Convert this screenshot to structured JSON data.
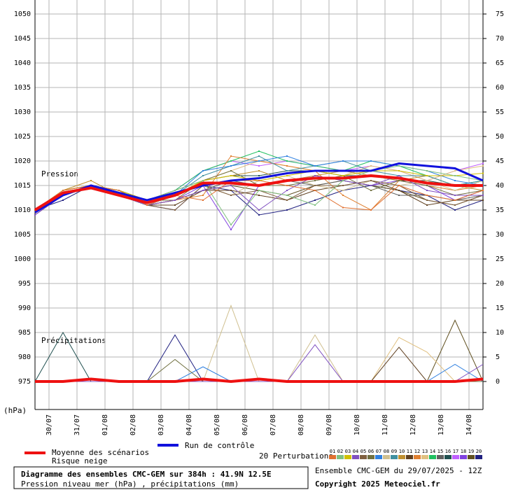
{
  "chart_data": {
    "type": "line",
    "pressure_label": "Pression",
    "precip_label": "Précipitations",
    "y_unit_label": "(hPa)",
    "x": [
      0,
      24,
      48,
      72,
      96,
      120,
      144,
      168,
      192,
      216,
      240,
      264,
      288,
      312,
      336,
      360,
      384
    ],
    "xlim": [
      0,
      384
    ],
    "xticks": [
      {
        "value": 12,
        "label": "30/07"
      },
      {
        "value": 36,
        "label": "31/07"
      },
      {
        "value": 60,
        "label": "01/08"
      },
      {
        "value": 84,
        "label": "02/08"
      },
      {
        "value": 108,
        "label": "03/08"
      },
      {
        "value": 132,
        "label": "04/08"
      },
      {
        "value": 156,
        "label": "05/08"
      },
      {
        "value": 180,
        "label": "06/08"
      },
      {
        "value": 204,
        "label": "07/08"
      },
      {
        "value": 228,
        "label": "08/08"
      },
      {
        "value": 252,
        "label": "09/08"
      },
      {
        "value": 276,
        "label": "10/08"
      },
      {
        "value": 300,
        "label": "11/08"
      },
      {
        "value": 324,
        "label": "12/08"
      },
      {
        "value": 348,
        "label": "13/08"
      },
      {
        "value": 372,
        "label": "14/08"
      }
    ],
    "ylim": [
      970,
      1050
    ],
    "yticks": [
      975,
      980,
      985,
      990,
      995,
      1000,
      1005,
      1010,
      1015,
      1020,
      1025,
      1030,
      1035,
      1040,
      1045,
      1050
    ],
    "y2lim": [
      -5,
      75
    ],
    "y2ticks": [
      0,
      5,
      10,
      15,
      20,
      25,
      30,
      35,
      40,
      45,
      50,
      55,
      60,
      65,
      70,
      75
    ],
    "grid": true,
    "series": [
      {
        "name": "Moyenne des scénarios",
        "color": "#ee1111",
        "values": [
          1010,
          1013.5,
          1014.5,
          1013,
          1011.5,
          1013,
          1015.5,
          1015.5,
          1015,
          1016,
          1016.5,
          1016.5,
          1017,
          1016.5,
          1015.5,
          1015,
          1015
        ],
        "precip": [
          0,
          0,
          0.5,
          0,
          0,
          0,
          0.5,
          0,
          0.5,
          0,
          0,
          0,
          0,
          0,
          0,
          0,
          0.5
        ],
        "axis_precip": "y2"
      },
      {
        "name": "Run de contrôle",
        "color": "#1111dd",
        "values": [
          1009.5,
          1013,
          1015,
          1013.5,
          1012,
          1013.5,
          1015,
          1016,
          1016.5,
          1017.5,
          1018,
          1018,
          1018,
          1019.5,
          1019,
          1018.5,
          1016
        ]
      },
      {
        "name": "01",
        "color": "#e07030",
        "values": [
          1010,
          1014,
          1015,
          1014,
          1011,
          1013,
          1012,
          1016,
          1016,
          1015,
          1014,
          1010.5,
          1010,
          1015,
          1013,
          1012,
          1014
        ]
      },
      {
        "name": "02",
        "color": "#80c080",
        "values": [
          1010,
          1013,
          1015,
          1013,
          1012,
          1014,
          1016,
          1007,
          1014,
          1013,
          1011,
          1016,
          1018,
          1019,
          1018,
          1017,
          1016
        ]
      },
      {
        "name": "03",
        "color": "#d0c000",
        "values": [
          1010,
          1014,
          1015,
          1014,
          1012,
          1013,
          1016,
          1017,
          1016,
          1017,
          1018,
          1017,
          1018,
          1018,
          1017,
          1017,
          1017.5
        ]
      },
      {
        "name": "04",
        "color": "#8050c0",
        "values": [
          1009,
          1013,
          1015,
          1013,
          1011,
          1012,
          1014,
          1015,
          1010,
          1014,
          1017,
          1016,
          1015,
          1017,
          1014,
          1013,
          1013
        ],
        "precip": [
          0,
          0,
          0,
          0,
          0,
          0,
          0,
          0,
          0,
          0,
          7.5,
          0,
          0,
          0,
          0,
          0,
          3.5
        ]
      },
      {
        "name": "05",
        "color": "#806040",
        "values": [
          1010,
          1013,
          1015,
          1013,
          1011,
          1010,
          1015,
          1013,
          1014,
          1012,
          1015,
          1015,
          1016,
          1015,
          1012,
          1011,
          1013
        ]
      },
      {
        "name": "06",
        "color": "#707040",
        "values": [
          1010,
          1014,
          1015,
          1014,
          1012,
          1012,
          1016,
          1018,
          1015,
          1015,
          1016,
          1017,
          1014,
          1016,
          1015,
          1013,
          1014
        ],
        "precip": [
          0,
          0,
          0,
          0,
          0,
          4.5,
          0,
          0,
          0,
          0,
          0,
          0,
          0,
          0,
          0,
          0,
          0
        ]
      },
      {
        "name": "07",
        "color": "#3080e0",
        "values": [
          1010,
          1013,
          1015,
          1013,
          1011,
          1013,
          1018,
          1019,
          1020,
          1021,
          1019,
          1020,
          1020,
          1019,
          1018,
          1016,
          1015
        ],
        "precip": [
          0,
          0,
          0,
          0,
          0,
          0,
          3,
          0,
          0,
          0,
          0,
          0,
          0,
          0,
          0,
          3.5,
          0
        ]
      },
      {
        "name": "08",
        "color": "#d0c090",
        "values": [
          1010,
          1014,
          1015,
          1014,
          1012,
          1013,
          1015,
          1013,
          1016,
          1017,
          1015,
          1014,
          1016,
          1015,
          1016,
          1014,
          1016
        ],
        "precip": [
          0,
          0,
          0,
          0,
          0,
          0,
          0,
          15.5,
          0,
          0,
          9.5,
          0,
          0,
          0,
          0,
          0,
          0
        ]
      },
      {
        "name": "09",
        "color": "#4090a0",
        "values": [
          1010,
          1013,
          1015,
          1014,
          1011,
          1013,
          1017,
          1019,
          1021,
          1018,
          1019,
          1020,
          1018,
          1017,
          1017,
          1015,
          1016
        ]
      },
      {
        "name": "10",
        "color": "#c09030",
        "values": [
          1010,
          1014,
          1016,
          1013,
          1012,
          1014,
          1016,
          1017,
          1018,
          1016,
          1017,
          1018,
          1017,
          1016,
          1017,
          1015,
          1014
        ]
      },
      {
        "name": "11",
        "color": "#604020",
        "values": [
          1009,
          1013,
          1015,
          1013,
          1011,
          1011,
          1014,
          1014,
          1013,
          1012,
          1014,
          1015,
          1016,
          1014,
          1011,
          1012,
          1012
        ],
        "precip": [
          0,
          0,
          0,
          0,
          0,
          0,
          0,
          0,
          0,
          0,
          0,
          0,
          0,
          7,
          0,
          0,
          0
        ]
      },
      {
        "name": "12",
        "color": "#e08030",
        "values": [
          1010,
          1013,
          1015,
          1013,
          1011,
          1012,
          1013,
          1021,
          1020,
          1019,
          1018,
          1013,
          1010,
          1016,
          1015,
          1014,
          1015
        ]
      },
      {
        "name": "13",
        "color": "#e0c080",
        "values": [
          1010,
          1014,
          1015,
          1014,
          1012,
          1013,
          1016,
          1018,
          1020,
          1019,
          1018,
          1017,
          1019,
          1018,
          1016,
          1018,
          1019
        ],
        "precip": [
          0,
          0,
          0,
          0,
          0,
          0,
          0,
          0,
          0,
          0,
          0,
          0,
          0,
          9,
          6,
          0,
          0
        ]
      },
      {
        "name": "14",
        "color": "#20c060",
        "values": [
          1010,
          1014,
          1015,
          1013,
          1012,
          1014,
          1018,
          1020,
          1022,
          1020,
          1019,
          1018,
          1020,
          1019,
          1017,
          1015,
          1016
        ]
      },
      {
        "name": "15",
        "color": "#606060",
        "values": [
          1010,
          1013,
          1015,
          1013,
          1011,
          1012,
          1014,
          1016,
          1015,
          1016,
          1015,
          1016,
          1015,
          1013,
          1013,
          1012,
          1013
        ]
      },
      {
        "name": "16",
        "color": "#205050",
        "values": [
          1010,
          1013,
          1015,
          1014,
          1011,
          1013,
          1016,
          1017,
          1017,
          1018,
          1018,
          1017,
          1017,
          1016,
          1016,
          1015,
          1016
        ],
        "precip": [
          0,
          10,
          0,
          0,
          0,
          0,
          0,
          0,
          0,
          0,
          0,
          0,
          0,
          0,
          0,
          0,
          0
        ]
      },
      {
        "name": "17",
        "color": "#c060ff",
        "values": [
          1010,
          1014,
          1015,
          1014,
          1012,
          1014,
          1018,
          1020,
          1019,
          1020,
          1019,
          1018,
          1019,
          1018,
          1016,
          1018,
          1019.5
        ]
      },
      {
        "name": "18",
        "color": "#8040e0",
        "values": [
          1009,
          1013,
          1015,
          1013,
          1011,
          1012,
          1015,
          1006,
          1015,
          1016,
          1017,
          1016,
          1015,
          1016,
          1015,
          1012,
          1014
        ]
      },
      {
        "name": "19",
        "color": "#605020",
        "values": [
          1010,
          1013,
          1015,
          1013,
          1011,
          1012,
          1014,
          1015,
          1014,
          1013,
          1015,
          1016,
          1015,
          1014,
          1012,
          1011,
          1013
        ],
        "precip": [
          0,
          0,
          0,
          0,
          0,
          0,
          0,
          0,
          0,
          0,
          0,
          0,
          0,
          0,
          0,
          12.5,
          0
        ]
      },
      {
        "name": "20",
        "color": "#202080",
        "values": [
          1010,
          1012,
          1015,
          1013,
          1011,
          1010,
          1015,
          1014,
          1009,
          1010,
          1012,
          1014,
          1015,
          1014,
          1013,
          1010,
          1012
        ],
        "precip": [
          0,
          0,
          0,
          0,
          0,
          9.5,
          0,
          0,
          0,
          0,
          0,
          0,
          0,
          0,
          0,
          0,
          0
        ]
      }
    ],
    "legend": {
      "risk_label": "Risque neige",
      "perturbations_title": "20 Perturbations"
    },
    "footer": {
      "title": "Diagramme des ensembles CMC-GEM sur 384h : 41.9N 12.5E",
      "subtitle": "Pression niveau mer (hPa) , précipitations (mm)",
      "run": "Ensemble CMC-GEM du 29/07/2025 - 12Z",
      "copyright": "Copyright 2025 Meteociel.fr"
    }
  }
}
